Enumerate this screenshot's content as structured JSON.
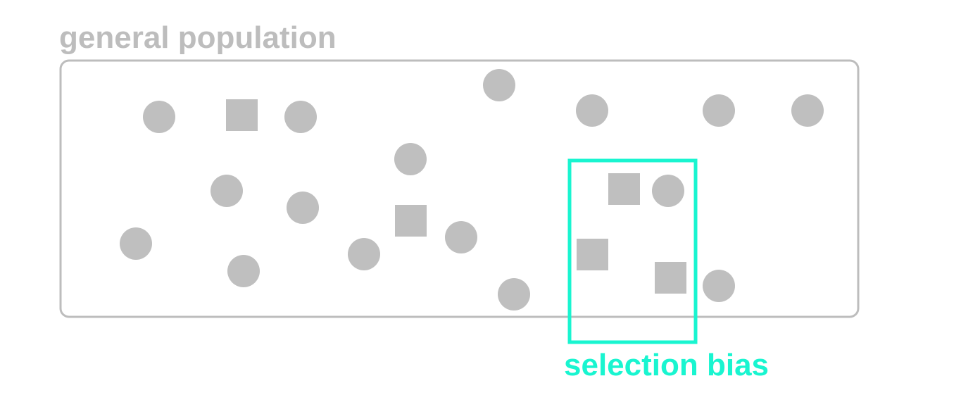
{
  "population": {
    "label": "general population",
    "color": "#bdbdbd"
  },
  "selection": {
    "label": "selection bias",
    "color": "#19f5d0"
  },
  "legend_shapes": {
    "circle": "circle-icon",
    "square": "square-icon"
  }
}
